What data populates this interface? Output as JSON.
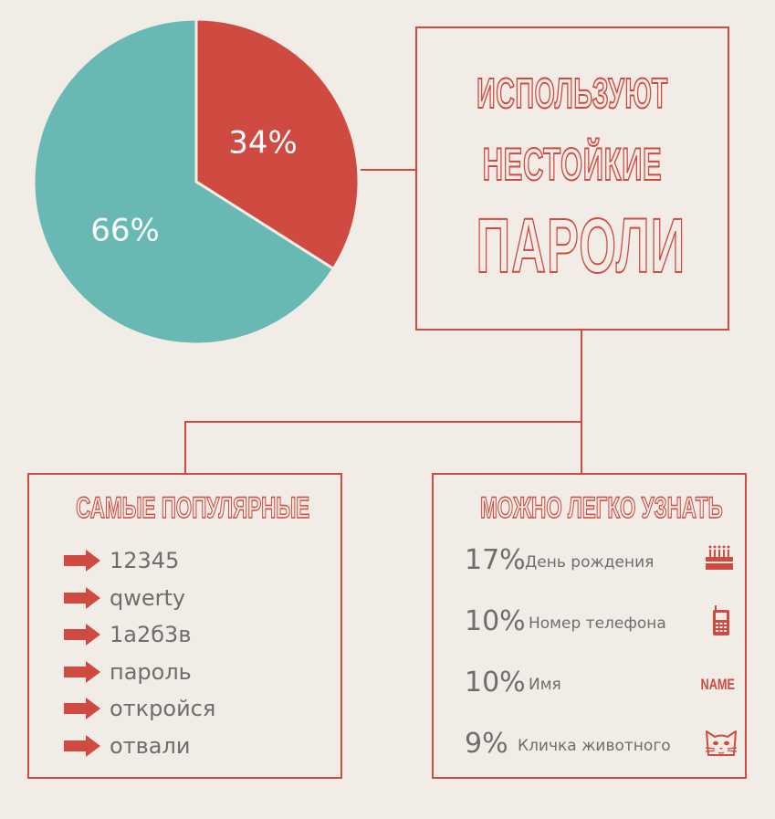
{
  "colors": {
    "red": "#cf4a40",
    "teal": "#68b8b3",
    "background": "#f1ece6",
    "text": "#6e6e6e"
  },
  "chart_data": {
    "type": "pie",
    "slices": [
      {
        "value": 34,
        "label": "34%",
        "color": "#cf4a40"
      },
      {
        "value": 66,
        "label": "66%",
        "color": "#68b8b3"
      }
    ]
  },
  "headline": {
    "line1": "ИСПОЛЬЗУЮТ",
    "line2": "НЕСТОЙКИЕ",
    "line3": "ПАРОЛИ"
  },
  "popular": {
    "title": "САМЫЕ ПОПУЛЯРНЫЕ",
    "items": [
      "12345",
      "qwerty",
      "1a2б3в",
      "пароль",
      "откройся",
      "отвали"
    ]
  },
  "guessable": {
    "title": "МОЖНО ЛЕГКО УЗНАТЬ",
    "items": [
      {
        "percent": "17%",
        "label": "День рождения",
        "icon": "birthday-cake-icon"
      },
      {
        "percent": "10%",
        "label": "Номер телефона",
        "icon": "mobile-phone-icon"
      },
      {
        "percent": "10%",
        "label": "Имя",
        "icon": "name-icon",
        "icon_text": "NAME"
      },
      {
        "percent": "9%",
        "label": "Кличка животного",
        "icon": "cat-face-icon"
      }
    ]
  }
}
